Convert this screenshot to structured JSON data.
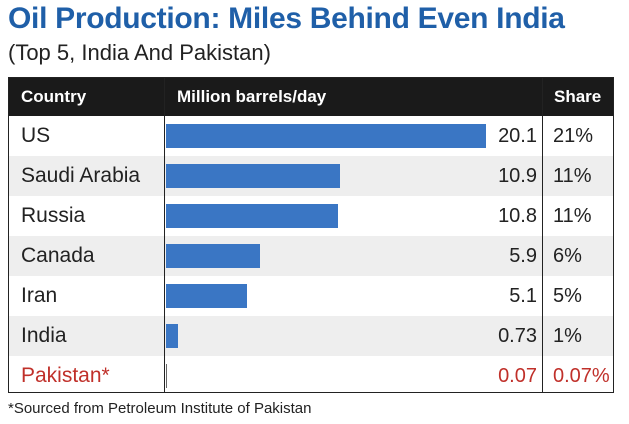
{
  "title": "Oil Production: Miles Behind Even India",
  "subtitle": "(Top 5, India And Pakistan)",
  "footnote": "*Sourced from Petroleum Institute of Pakistan",
  "colors": {
    "title": "#1f5fa8",
    "bar": "#3a76c4",
    "highlight": "#c0302a",
    "header_bg": "#1a1a1a",
    "row_shade": "#eeeeee"
  },
  "chart_data": {
    "type": "bar",
    "orientation": "horizontal",
    "title": "Oil Production: Miles Behind Even India",
    "subtitle": "(Top 5, India And Pakistan)",
    "columns": [
      "Country",
      "Million barrels/day",
      "Share"
    ],
    "categories": [
      "US",
      "Saudi Arabia",
      "Russia",
      "Canada",
      "Iran",
      "India",
      "Pakistan*"
    ],
    "value_labels": [
      "20.1",
      "10.9",
      "10.8",
      "5.9",
      "5.1",
      "0.73",
      "0.07"
    ],
    "share_labels": [
      "21%",
      "11%",
      "11%",
      "6%",
      "5%",
      "1%",
      "0.07%"
    ],
    "series": [
      {
        "values": [
          20.1,
          10.9,
          10.8,
          5.9,
          5.1,
          0.73,
          0.07
        ]
      }
    ],
    "xlim": [
      0,
      20.1
    ],
    "highlight": "Pakistan*"
  }
}
